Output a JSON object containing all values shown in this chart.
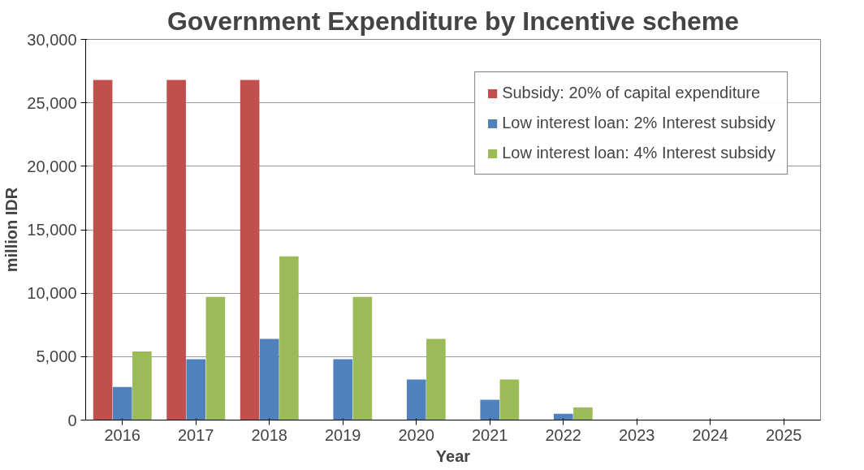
{
  "chart_data": {
    "type": "bar",
    "title": "Government Expenditure by Incentive scheme",
    "xlabel": "Year",
    "ylabel": "million IDR",
    "categories": [
      "2016",
      "2017",
      "2018",
      "2019",
      "2020",
      "2021",
      "2022",
      "2023",
      "2024",
      "2025"
    ],
    "series": [
      {
        "name": "Subsidy: 20% of capital expenditure",
        "color": "#c0504d",
        "values": [
          26800,
          26800,
          26800,
          0,
          0,
          0,
          0,
          0,
          0,
          0
        ]
      },
      {
        "name": "Low interest loan: 2% Interest subsidy",
        "color": "#4f81bd",
        "values": [
          2600,
          4800,
          6400,
          4800,
          3200,
          1600,
          500,
          0,
          0,
          0
        ]
      },
      {
        "name": "Low interest loan: 4% Interest subsidy",
        "color": "#9bbb59",
        "values": [
          5400,
          9700,
          12900,
          9700,
          6400,
          3200,
          1000,
          0,
          0,
          0
        ]
      }
    ],
    "ylim": [
      0,
      30000
    ],
    "yticks": [
      {
        "value": 0,
        "label": "0"
      },
      {
        "value": 5000,
        "label": "5,000"
      },
      {
        "value": 10000,
        "label": "10,000"
      },
      {
        "value": 15000,
        "label": "15,000"
      },
      {
        "value": 20000,
        "label": "20,000"
      },
      {
        "value": 25000,
        "label": "25,000"
      },
      {
        "value": 30000,
        "label": "30,000"
      }
    ],
    "grid": "y",
    "legend": "top right"
  }
}
